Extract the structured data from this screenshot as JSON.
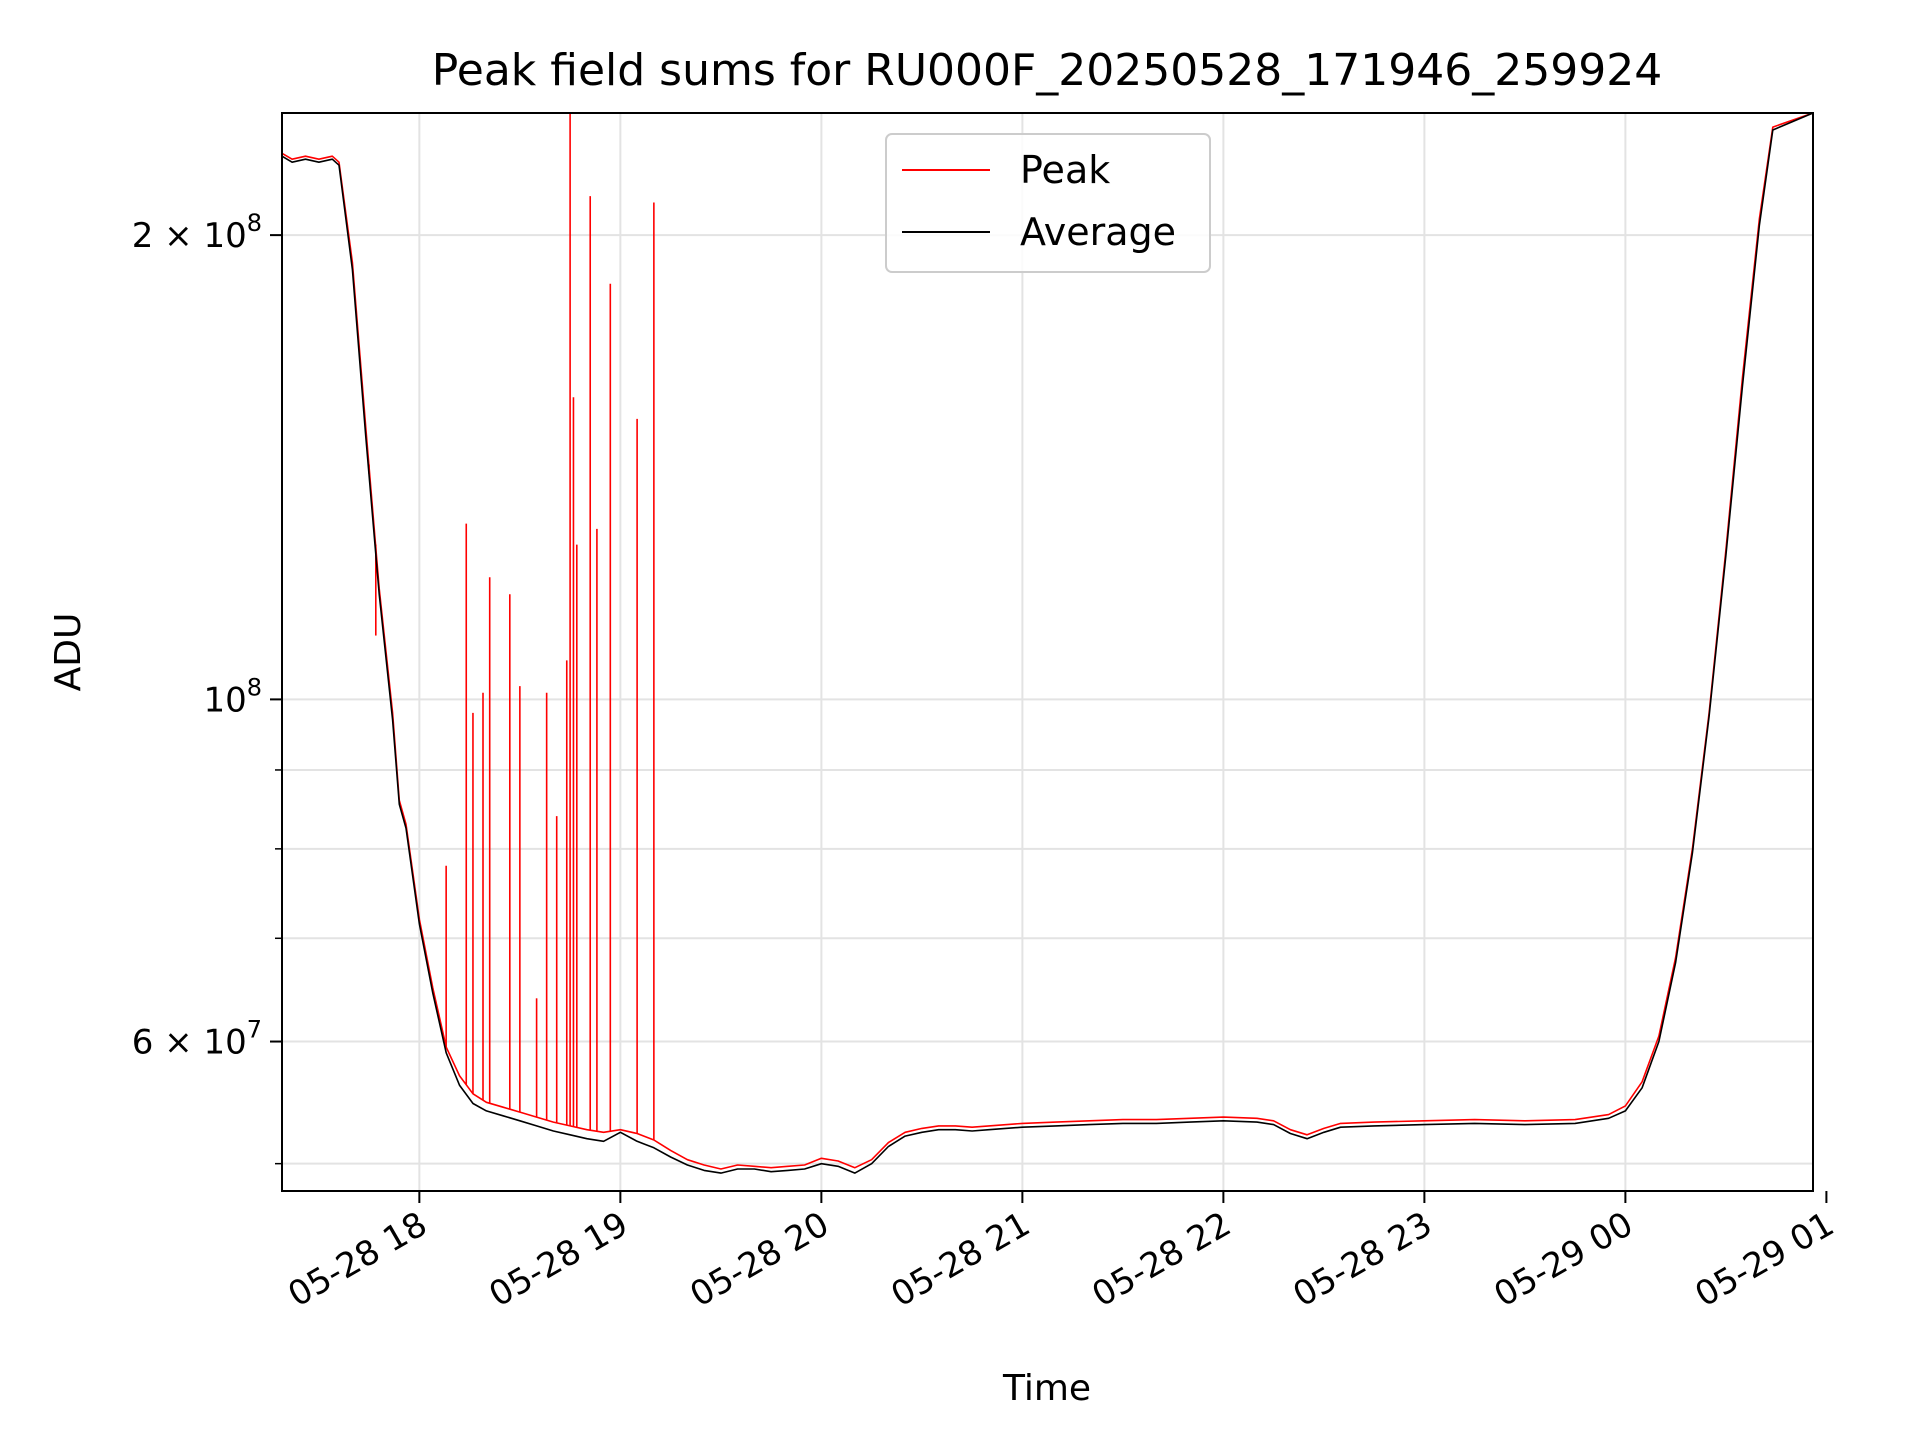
{
  "chart_data": {
    "type": "line",
    "title": "Peak field sums for RU000F_20250528_171946_259924",
    "xlabel": "Time",
    "ylabel": "ADU",
    "y_scale": "log",
    "ylim": [
      48000000,
      240000000
    ],
    "xlim": [
      "2025-05-28 17:19",
      "2025-05-29 00:56"
    ],
    "grid": true,
    "legend": {
      "placement": "top-center"
    },
    "x_ticks": [
      {
        "value": "2025-05-28 18:00",
        "label": "05-28 18"
      },
      {
        "value": "2025-05-28 19:00",
        "label": "05-28 19"
      },
      {
        "value": "2025-05-28 20:00",
        "label": "05-28 20"
      },
      {
        "value": "2025-05-28 21:00",
        "label": "05-28 21"
      },
      {
        "value": "2025-05-28 22:00",
        "label": "05-28 22"
      },
      {
        "value": "2025-05-28 23:00",
        "label": "05-28 23"
      },
      {
        "value": "2025-05-29 00:00",
        "label": "05-29 00"
      },
      {
        "value": "2025-05-29 01:00",
        "label": "05-29 01"
      }
    ],
    "y_ticks": [
      {
        "value": 200000000,
        "base": "2 × 10",
        "exp": "8"
      },
      {
        "value": 100000000,
        "base": "10",
        "exp": "8"
      },
      {
        "value": 60000000,
        "base": "6 × 10",
        "exp": "7"
      }
    ],
    "y_minor_ticks": [
      50000000,
      70000000,
      80000000,
      90000000
    ],
    "series": [
      {
        "name": "Peak",
        "color": "#ff0000",
        "points": [
          [
            "2025-05-28 17:19",
            226000000
          ],
          [
            "2025-05-28 17:22",
            224000000
          ],
          [
            "2025-05-28 17:26",
            225000000
          ],
          [
            "2025-05-28 17:30",
            224000000
          ],
          [
            "2025-05-28 17:34",
            225000000
          ],
          [
            "2025-05-28 17:36",
            223000000
          ],
          [
            "2025-05-28 17:40",
            192000000
          ],
          [
            "2025-05-28 17:44",
            150000000
          ],
          [
            "2025-05-28 17:48",
            118000000
          ],
          [
            "2025-05-28 17:52",
            98000000
          ],
          [
            "2025-05-28 17:54",
            86000000
          ],
          [
            "2025-05-28 17:56",
            83000000
          ],
          [
            "2025-05-28 18:00",
            72000000
          ],
          [
            "2025-05-28 18:04",
            65000000
          ],
          [
            "2025-05-28 18:08",
            59500000
          ],
          [
            "2025-05-28 18:12",
            57000000
          ],
          [
            "2025-05-28 18:16",
            55500000
          ],
          [
            "2025-05-28 18:20",
            54800000
          ],
          [
            "2025-05-28 18:25",
            54400000
          ],
          [
            "2025-05-28 18:30",
            54000000
          ],
          [
            "2025-05-28 18:35",
            53600000
          ],
          [
            "2025-05-28 18:40",
            53200000
          ],
          [
            "2025-05-28 18:45",
            52900000
          ],
          [
            "2025-05-28 18:50",
            52600000
          ],
          [
            "2025-05-28 18:55",
            52400000
          ],
          [
            "2025-05-28 19:00",
            52600000
          ],
          [
            "2025-05-28 19:05",
            52300000
          ],
          [
            "2025-05-28 19:10",
            51800000
          ],
          [
            "2025-05-28 19:15",
            51000000
          ],
          [
            "2025-05-28 19:20",
            50300000
          ],
          [
            "2025-05-28 19:25",
            49900000
          ],
          [
            "2025-05-28 19:30",
            49600000
          ],
          [
            "2025-05-28 19:35",
            49900000
          ],
          [
            "2025-05-28 19:40",
            49800000
          ],
          [
            "2025-05-28 19:45",
            49700000
          ],
          [
            "2025-05-28 19:50",
            49800000
          ],
          [
            "2025-05-28 19:55",
            49900000
          ],
          [
            "2025-05-28 20:00",
            50400000
          ],
          [
            "2025-05-28 20:05",
            50200000
          ],
          [
            "2025-05-28 20:10",
            49700000
          ],
          [
            "2025-05-28 20:15",
            50300000
          ],
          [
            "2025-05-28 20:20",
            51600000
          ],
          [
            "2025-05-28 20:25",
            52400000
          ],
          [
            "2025-05-28 20:30",
            52700000
          ],
          [
            "2025-05-28 20:35",
            52900000
          ],
          [
            "2025-05-28 20:40",
            52900000
          ],
          [
            "2025-05-28 20:45",
            52800000
          ],
          [
            "2025-05-28 20:50",
            52900000
          ],
          [
            "2025-05-28 21:00",
            53100000
          ],
          [
            "2025-05-28 21:10",
            53200000
          ],
          [
            "2025-05-28 21:20",
            53300000
          ],
          [
            "2025-05-28 21:30",
            53400000
          ],
          [
            "2025-05-28 21:40",
            53400000
          ],
          [
            "2025-05-28 21:50",
            53500000
          ],
          [
            "2025-05-28 22:00",
            53600000
          ],
          [
            "2025-05-28 22:10",
            53500000
          ],
          [
            "2025-05-28 22:15",
            53300000
          ],
          [
            "2025-05-28 22:20",
            52600000
          ],
          [
            "2025-05-28 22:25",
            52200000
          ],
          [
            "2025-05-28 22:30",
            52700000
          ],
          [
            "2025-05-28 22:35",
            53100000
          ],
          [
            "2025-05-28 22:45",
            53200000
          ],
          [
            "2025-05-28 23:00",
            53300000
          ],
          [
            "2025-05-28 23:15",
            53400000
          ],
          [
            "2025-05-28 23:30",
            53300000
          ],
          [
            "2025-05-28 23:45",
            53400000
          ],
          [
            "2025-05-28 23:55",
            53800000
          ],
          [
            "2025-05-29 00:00",
            54500000
          ],
          [
            "2025-05-29 00:05",
            56500000
          ],
          [
            "2025-05-29 00:10",
            60500000
          ],
          [
            "2025-05-29 00:15",
            68000000
          ],
          [
            "2025-05-29 00:20",
            80000000
          ],
          [
            "2025-05-29 00:25",
            98000000
          ],
          [
            "2025-05-29 00:30",
            125000000
          ],
          [
            "2025-05-29 00:35",
            162000000
          ],
          [
            "2025-05-29 00:40",
            205000000
          ],
          [
            "2025-05-29 00:44",
            235000000
          ],
          [
            "2025-05-29 00:56",
            240000000
          ]
        ],
        "spikes": [
          [
            "2025-05-28 17:45",
            140000000
          ],
          [
            "2025-05-28 17:47",
            110000000
          ],
          [
            "2025-05-28 18:08",
            78000000
          ],
          [
            "2025-05-28 18:14",
            130000000
          ],
          [
            "2025-05-28 18:16",
            98000000
          ],
          [
            "2025-05-28 18:19",
            101000000
          ],
          [
            "2025-05-28 18:21",
            120000000
          ],
          [
            "2025-05-28 18:27",
            117000000
          ],
          [
            "2025-05-28 18:30",
            102000000
          ],
          [
            "2025-05-28 18:35",
            64000000
          ],
          [
            "2025-05-28 18:38",
            101000000
          ],
          [
            "2025-05-28 18:41",
            84000000
          ],
          [
            "2025-05-28 18:44",
            106000000
          ],
          [
            "2025-05-28 18:45",
            240000000
          ],
          [
            "2025-05-28 18:46",
            157000000
          ],
          [
            "2025-05-28 18:47",
            126000000
          ],
          [
            "2025-05-28 18:51",
            212000000
          ],
          [
            "2025-05-28 18:53",
            129000000
          ],
          [
            "2025-05-28 18:57",
            186000000
          ],
          [
            "2025-05-28 19:05",
            152000000
          ],
          [
            "2025-05-28 19:10",
            210000000
          ]
        ]
      },
      {
        "name": "Average",
        "color": "#000000",
        "points": [
          [
            "2025-05-28 17:19",
            225000000
          ],
          [
            "2025-05-28 17:22",
            223000000
          ],
          [
            "2025-05-28 17:26",
            224000000
          ],
          [
            "2025-05-28 17:30",
            223000000
          ],
          [
            "2025-05-28 17:34",
            224000000
          ],
          [
            "2025-05-28 17:36",
            222000000
          ],
          [
            "2025-05-28 17:40",
            190000000
          ],
          [
            "2025-05-28 17:44",
            148000000
          ],
          [
            "2025-05-28 17:48",
            117000000
          ],
          [
            "2025-05-28 17:52",
            97000000
          ],
          [
            "2025-05-28 17:54",
            85500000
          ],
          [
            "2025-05-28 17:56",
            82500000
          ],
          [
            "2025-05-28 18:00",
            71500000
          ],
          [
            "2025-05-28 18:04",
            64500000
          ],
          [
            "2025-05-28 18:08",
            59000000
          ],
          [
            "2025-05-28 18:12",
            56200000
          ],
          [
            "2025-05-28 18:16",
            54700000
          ],
          [
            "2025-05-28 18:20",
            54100000
          ],
          [
            "2025-05-28 18:25",
            53700000
          ],
          [
            "2025-05-28 18:30",
            53300000
          ],
          [
            "2025-05-28 18:35",
            52900000
          ],
          [
            "2025-05-28 18:40",
            52500000
          ],
          [
            "2025-05-28 18:45",
            52200000
          ],
          [
            "2025-05-28 18:50",
            51900000
          ],
          [
            "2025-05-28 18:55",
            51700000
          ],
          [
            "2025-05-28 19:00",
            52400000
          ],
          [
            "2025-05-28 19:05",
            51700000
          ],
          [
            "2025-05-28 19:10",
            51200000
          ],
          [
            "2025-05-28 19:15",
            50500000
          ],
          [
            "2025-05-28 19:20",
            49900000
          ],
          [
            "2025-05-28 19:25",
            49500000
          ],
          [
            "2025-05-28 19:30",
            49300000
          ],
          [
            "2025-05-28 19:35",
            49600000
          ],
          [
            "2025-05-28 19:40",
            49600000
          ],
          [
            "2025-05-28 19:45",
            49400000
          ],
          [
            "2025-05-28 19:50",
            49500000
          ],
          [
            "2025-05-28 19:55",
            49600000
          ],
          [
            "2025-05-28 20:00",
            50000000
          ],
          [
            "2025-05-28 20:05",
            49800000
          ],
          [
            "2025-05-28 20:10",
            49300000
          ],
          [
            "2025-05-28 20:15",
            50000000
          ],
          [
            "2025-05-28 20:20",
            51300000
          ],
          [
            "2025-05-28 20:25",
            52100000
          ],
          [
            "2025-05-28 20:30",
            52400000
          ],
          [
            "2025-05-28 20:35",
            52600000
          ],
          [
            "2025-05-28 20:40",
            52600000
          ],
          [
            "2025-05-28 20:45",
            52500000
          ],
          [
            "2025-05-28 20:50",
            52600000
          ],
          [
            "2025-05-28 21:00",
            52800000
          ],
          [
            "2025-05-28 21:10",
            52900000
          ],
          [
            "2025-05-28 21:20",
            53000000
          ],
          [
            "2025-05-28 21:30",
            53100000
          ],
          [
            "2025-05-28 21:40",
            53100000
          ],
          [
            "2025-05-28 21:50",
            53200000
          ],
          [
            "2025-05-28 22:00",
            53300000
          ],
          [
            "2025-05-28 22:10",
            53200000
          ],
          [
            "2025-05-28 22:15",
            53000000
          ],
          [
            "2025-05-28 22:20",
            52300000
          ],
          [
            "2025-05-28 22:25",
            51900000
          ],
          [
            "2025-05-28 22:30",
            52400000
          ],
          [
            "2025-05-28 22:35",
            52800000
          ],
          [
            "2025-05-28 22:45",
            52900000
          ],
          [
            "2025-05-28 23:00",
            53000000
          ],
          [
            "2025-05-28 23:15",
            53100000
          ],
          [
            "2025-05-28 23:30",
            53000000
          ],
          [
            "2025-05-28 23:45",
            53100000
          ],
          [
            "2025-05-28 23:55",
            53500000
          ],
          [
            "2025-05-29 00:00",
            54100000
          ],
          [
            "2025-05-29 00:05",
            56000000
          ],
          [
            "2025-05-29 00:10",
            60000000
          ],
          [
            "2025-05-29 00:15",
            67500000
          ],
          [
            "2025-05-29 00:20",
            79500000
          ],
          [
            "2025-05-29 00:25",
            97500000
          ],
          [
            "2025-05-29 00:30",
            124000000
          ],
          [
            "2025-05-29 00:35",
            160000000
          ],
          [
            "2025-05-29 00:40",
            203000000
          ],
          [
            "2025-05-29 00:44",
            234000000
          ],
          [
            "2025-05-29 00:56",
            240000000
          ]
        ]
      }
    ]
  }
}
